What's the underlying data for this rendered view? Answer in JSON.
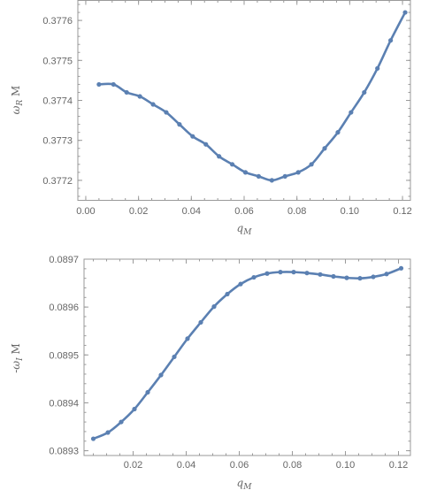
{
  "chart_data": [
    {
      "type": "line",
      "xlabel": "q_M",
      "ylabel": "ω_R M",
      "xlim": [
        -0.003,
        0.123
      ],
      "ylim": [
        0.37715,
        0.37765
      ],
      "x_ticks": [
        0.0,
        0.02,
        0.04,
        0.06,
        0.08,
        0.1,
        0.12
      ],
      "x_tick_labels": [
        "0.00",
        "0.02",
        "0.04",
        "0.06",
        "0.08",
        "0.10",
        "0.12"
      ],
      "y_ticks": [
        0.3772,
        0.3773,
        0.3774,
        0.3775,
        0.3776
      ],
      "y_tick_labels": [
        "0.3772",
        "0.3773",
        "0.3774",
        "0.3775",
        "0.3776"
      ],
      "grid": false,
      "series": [
        {
          "color": "#5b80b2",
          "x": [
            0.005,
            0.0105,
            0.0155,
            0.0205,
            0.0255,
            0.0305,
            0.0355,
            0.0405,
            0.0455,
            0.0505,
            0.0555,
            0.0605,
            0.0655,
            0.0705,
            0.0755,
            0.0805,
            0.0855,
            0.0905,
            0.0955,
            0.1005,
            0.1055,
            0.1105,
            0.1155,
            0.121
          ],
          "y": [
            0.37744,
            0.37744,
            0.37742,
            0.37741,
            0.37739,
            0.37737,
            0.37734,
            0.37731,
            0.37729,
            0.37726,
            0.37724,
            0.37722,
            0.37721,
            0.3772,
            0.37721,
            0.37722,
            0.37724,
            0.37728,
            0.37732,
            0.37737,
            0.37742,
            0.37748,
            0.37755,
            0.37762
          ]
        }
      ]
    },
    {
      "type": "line",
      "xlabel": "q_M",
      "ylabel": "-ω_I M",
      "xlim": [
        0.0015,
        0.1245
      ],
      "ylim": [
        0.08929,
        0.0897
      ],
      "x_ticks": [
        0.02,
        0.04,
        0.06,
        0.08,
        0.1,
        0.12
      ],
      "x_tick_labels": [
        "0.02",
        "0.04",
        "0.06",
        "0.08",
        "0.10",
        "0.12"
      ],
      "y_ticks": [
        0.0893,
        0.0894,
        0.0895,
        0.0896,
        0.0897
      ],
      "y_tick_labels": [
        "0.0893",
        "0.0894",
        "0.0895",
        "0.0896",
        "0.0897"
      ],
      "grid": false,
      "series": [
        {
          "color": "#5b80b2",
          "x": [
            0.005,
            0.0105,
            0.0155,
            0.0205,
            0.0255,
            0.0305,
            0.0355,
            0.0405,
            0.0455,
            0.0505,
            0.0555,
            0.0605,
            0.0655,
            0.0705,
            0.0755,
            0.0805,
            0.0855,
            0.0905,
            0.0955,
            0.1005,
            0.1055,
            0.1105,
            0.1155,
            0.121
          ],
          "y": [
            0.089325,
            0.089338,
            0.08936,
            0.089387,
            0.089422,
            0.089458,
            0.089496,
            0.089534,
            0.089568,
            0.089601,
            0.089627,
            0.089648,
            0.089662,
            0.08967,
            0.089673,
            0.089673,
            0.089671,
            0.089668,
            0.089664,
            0.089661,
            0.08966,
            0.089663,
            0.089669,
            0.089681
          ]
        }
      ]
    }
  ]
}
